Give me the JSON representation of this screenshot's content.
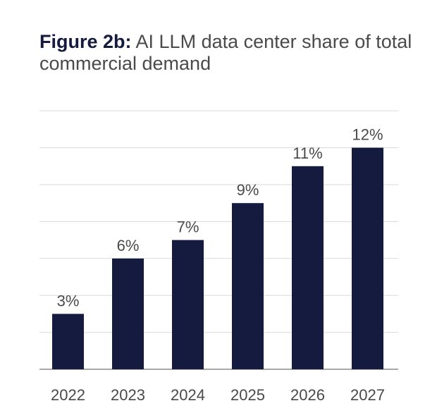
{
  "title": {
    "lead": "Figure 2b:",
    "text": " AI LLM data center share of total commercial demand"
  },
  "colors": {
    "bar": "#141b3f",
    "lead_text": "#141b3f",
    "text": "#4a4a4a"
  },
  "chart_data": {
    "type": "bar",
    "title": "Figure 2b: AI LLM data center share of total commercial demand",
    "categories": [
      "2022",
      "2023",
      "2024",
      "2025",
      "2026",
      "2027"
    ],
    "values": [
      3,
      6,
      7,
      9,
      11,
      12
    ],
    "value_labels": [
      "3%",
      "6%",
      "7%",
      "9%",
      "11%",
      "12%"
    ],
    "unit": "%",
    "xlabel": "",
    "ylabel": "",
    "ylim": [
      0,
      14
    ],
    "grid": true,
    "legend": "none"
  }
}
